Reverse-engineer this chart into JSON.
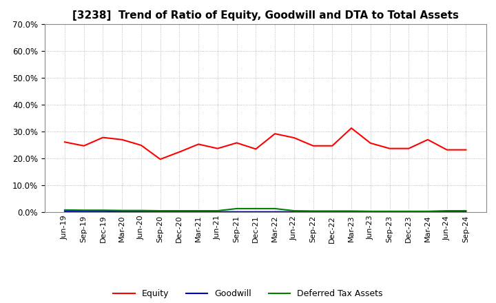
{
  "title": "[3238]  Trend of Ratio of Equity, Goodwill and DTA to Total Assets",
  "x_labels": [
    "Jun-19",
    "Sep-19",
    "Dec-19",
    "Mar-20",
    "Jun-20",
    "Sep-20",
    "Dec-20",
    "Mar-21",
    "Jun-21",
    "Sep-21",
    "Dec-21",
    "Mar-22",
    "Jun-22",
    "Sep-22",
    "Dec-22",
    "Mar-23",
    "Jun-23",
    "Sep-23",
    "Dec-23",
    "Mar-24",
    "Jun-24",
    "Sep-24"
  ],
  "equity": [
    0.261,
    0.247,
    0.278,
    0.27,
    0.249,
    0.197,
    0.224,
    0.253,
    0.237,
    0.258,
    0.235,
    0.292,
    0.277,
    0.247,
    0.247,
    0.313,
    0.257,
    0.237,
    0.237,
    0.27,
    0.232,
    0.232
  ],
  "goodwill": [
    0.003,
    0.003,
    0.003,
    0.002,
    0.002,
    0.002,
    0.002,
    0.001,
    0.001,
    0.001,
    0.001,
    0.001,
    0.001,
    0.001,
    0.001,
    0.001,
    0.001,
    0.001,
    0.001,
    0.001,
    0.001,
    0.001
  ],
  "dta": [
    0.008,
    0.007,
    0.007,
    0.006,
    0.006,
    0.005,
    0.005,
    0.005,
    0.005,
    0.013,
    0.013,
    0.013,
    0.005,
    0.004,
    0.004,
    0.004,
    0.003,
    0.003,
    0.003,
    0.003,
    0.005,
    0.005
  ],
  "equity_color": "#FF0000",
  "goodwill_color": "#0000CD",
  "dta_color": "#008000",
  "ylim": [
    0.0,
    0.7
  ],
  "yticks": [
    0.0,
    0.1,
    0.2,
    0.3,
    0.4,
    0.5,
    0.6,
    0.7
  ],
  "bg_color": "#FFFFFF",
  "grid_color": "#AAAAAA",
  "title_fontsize": 11,
  "legend_labels": [
    "Equity",
    "Goodwill",
    "Deferred Tax Assets"
  ]
}
